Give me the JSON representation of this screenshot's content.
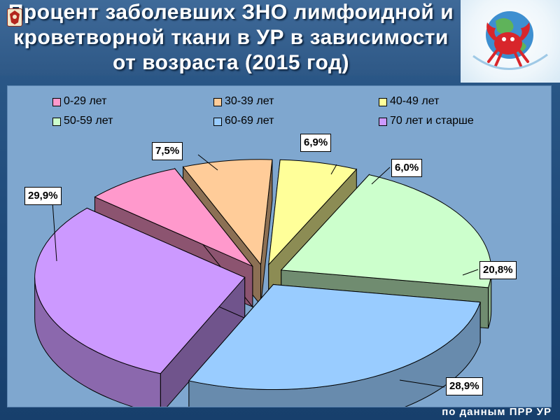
{
  "title": {
    "line1": "Процент заболевших ЗНО лимфоидной и",
    "line2": "кроветворной ткани в УР в зависимости",
    "line3": "от возраста (2015 год)"
  },
  "footer": "по данным ПРР УР",
  "colors": {
    "background": "#1f4a7a",
    "plot_area": "#7fa7cf",
    "title_text": "#ffffff"
  },
  "icons": {
    "left_logo": "emblem-icon",
    "right_logo": "crab-globe-icon"
  },
  "chart_data": {
    "type": "pie",
    "style": "3d-exploded",
    "legend_position": "top",
    "categories": [
      "0-29 лет",
      "30-39 лет",
      "40-49 лет",
      "50-59 лет",
      "60-69 лет",
      "70 лет и старше"
    ],
    "values": [
      7.5,
      6.9,
      6.0,
      20.8,
      28.9,
      29.9
    ],
    "labels": [
      "7,5%",
      "6,9%",
      "6,0%",
      "20,8%",
      "28,9%",
      "29,9%"
    ],
    "colors": [
      "#ff99cc",
      "#ffcc99",
      "#ffff99",
      "#ccffcc",
      "#99ccff",
      "#cc99ff"
    ]
  }
}
